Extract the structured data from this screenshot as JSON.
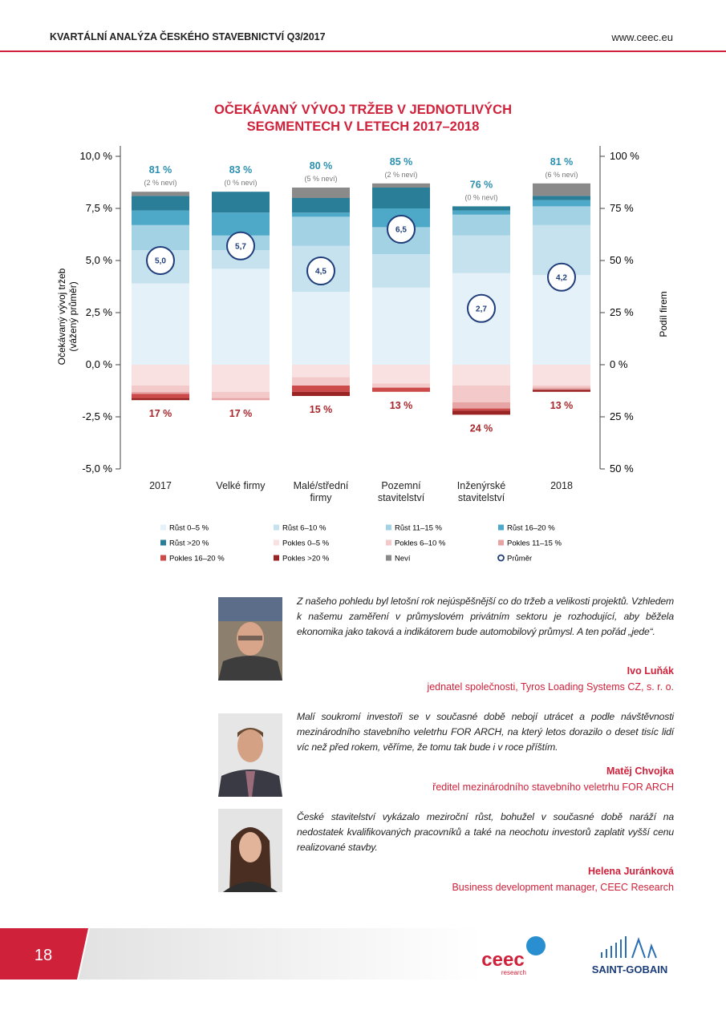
{
  "header": {
    "title": "KVARTÁLNÍ ANALÝZA ČESKÉHO STAVEBNICTVÍ Q3/2017",
    "url": "www.ceec.eu"
  },
  "chart_data": {
    "type": "stacked_bar",
    "title": [
      "OČEKÁVANÝ VÝVOJ TRŽEB V JEDNOTLIVÝCH",
      "SEGMENTECH V LETECH 2017–2018"
    ],
    "ylabel": [
      "Očekávaný vývoj tržeb",
      "(vážený průměr)"
    ],
    "y2label": "Podíl firem",
    "categories": [
      "2017",
      "Velké firmy",
      "Malé/střední firmy",
      "Pozemní stavitelství",
      "Inženýrské stavitelství",
      "2018"
    ],
    "ylim": [
      -5,
      10.5
    ],
    "yticks": [
      {
        "value": -5,
        "label": "-5,0 %"
      },
      {
        "value": -2.5,
        "label": "-2,5 %"
      },
      {
        "value": 0,
        "label": "0,0 %"
      },
      {
        "value": 2.5,
        "label": "2,5 %"
      },
      {
        "value": 5,
        "label": "5,0 %"
      },
      {
        "value": 7.5,
        "label": "7,5 %"
      },
      {
        "value": 10,
        "label": "10,0 %"
      }
    ],
    "y2lim": [
      -50,
      105
    ],
    "y2ticks": [
      {
        "value": -50,
        "label": "50 %"
      },
      {
        "value": -25,
        "label": "25 %"
      },
      {
        "value": 0,
        "label": "0 %"
      },
      {
        "value": 25,
        "label": "25 %"
      },
      {
        "value": 50,
        "label": "50 %"
      },
      {
        "value": 75,
        "label": "75 %"
      },
      {
        "value": 100,
        "label": "100 %"
      }
    ],
    "series": [
      {
        "name": "Růst 0–5 %",
        "color": "#e4f1f8",
        "axis": "y2",
        "values": [
          39,
          46,
          35,
          37,
          44,
          43
        ]
      },
      {
        "name": "Růst 6–10 %",
        "color": "#c6e2ee",
        "axis": "y2",
        "values": [
          16,
          9,
          22,
          16,
          18,
          24
        ]
      },
      {
        "name": "Růst 11–15 %",
        "color": "#a2d2e4",
        "axis": "y2",
        "values": [
          12,
          7,
          14,
          13,
          10,
          9
        ]
      },
      {
        "name": "Růst 16–20 %",
        "color": "#4ea8c8",
        "axis": "y2",
        "values": [
          7,
          11,
          2,
          9,
          2,
          3
        ]
      },
      {
        "name": "Růst >20 %",
        "color": "#2b7e97",
        "axis": "y2",
        "values": [
          7,
          10,
          7,
          10,
          2,
          2
        ]
      },
      {
        "name": "Pokles 0–5 %",
        "color": "#f9e1e1",
        "axis": "y2",
        "values": [
          -10,
          -13,
          -6,
          -9,
          -10,
          -10
        ]
      },
      {
        "name": "Pokles 6–10 %",
        "color": "#f3c9c9",
        "axis": "y2",
        "values": [
          -3,
          -3,
          -4,
          -2,
          -8,
          -1
        ]
      },
      {
        "name": "Pokles 11–15 %",
        "color": "#e7a4a4",
        "axis": "y2",
        "values": [
          -1,
          -1,
          0,
          0,
          -3,
          -1
        ]
      },
      {
        "name": "Pokles 16–20 %",
        "color": "#cc4a4a",
        "axis": "y2",
        "values": [
          -2,
          0,
          -3,
          -2,
          -1,
          0
        ]
      },
      {
        "name": "Pokles >20 %",
        "color": "#9a2323",
        "axis": "y2",
        "values": [
          -1,
          0,
          -2,
          0,
          -2,
          -1
        ]
      },
      {
        "name": "Neví",
        "color": "#8a8a8a",
        "axis": "y2",
        "values": [
          2,
          0,
          5,
          2,
          0,
          6
        ]
      },
      {
        "name": "Průměr",
        "color": "#1f3d7a",
        "axis": "y",
        "values": [
          5,
          5.7,
          4.5,
          6.5,
          2.7,
          4.2
        ],
        "value_labels": [
          "5,0",
          "5,7",
          "4,5",
          "6,5",
          "2,7",
          "4,2"
        ]
      }
    ],
    "growth_labels": [
      "81 %",
      "83 %",
      "80 %",
      "85 %",
      "76 %",
      "81 %"
    ],
    "unknown_labels": [
      "(2 % neví)",
      "(0 % neví)",
      "(5 % neví)",
      "(2 % neví)",
      "(0 % neví)",
      "(6 % neví)"
    ],
    "decline_labels": [
      "17 %",
      "17 %",
      "15 %",
      "13 %",
      "24 %",
      "13 %"
    ]
  },
  "quotes": [
    {
      "text": "Z našeho pohledu byl letošní rok nejúspěšnější co do tržeb a velikosti projektů. Vzhledem k našemu zaměření v průmyslovém privátním sektoru je rozhodující, aby běžela ekonomika jako taková a indikátorem bude automobilový průmysl. A ten pořád „jede“.",
      "name": "Ivo Luňák",
      "role": "jednatel společnosti, Tyros Loading Systems CZ, s. r. o."
    },
    {
      "text": "Malí soukromí investoři se v současné době nebojí utrácet a podle návštěvnosti mezinárodního stavebního veletrhu FOR ARCH, na který letos dorazilo o deset tisíc lidí víc než před rokem, věříme, že tomu tak bude i v roce příštím.",
      "name": "Matěj Chvojka",
      "role": "ředitel mezinárodního stavebního veletrhu FOR ARCH"
    },
    {
      "text": "České stavitelství vykázalo meziroční růst, bohužel v současné době naráží na nedostatek kvalifikovaných pracovníků a také na neochotu investorů zaplatit vyšší cenu realizované stavby.",
      "name": "Helena Juránková",
      "role": "Business development manager, CEEC Research"
    }
  ],
  "footer": {
    "page": "18",
    "logo_ceec": "ceec",
    "logo_ceec_sub": "research",
    "logo_sg": "SAINT-GOBAIN"
  }
}
